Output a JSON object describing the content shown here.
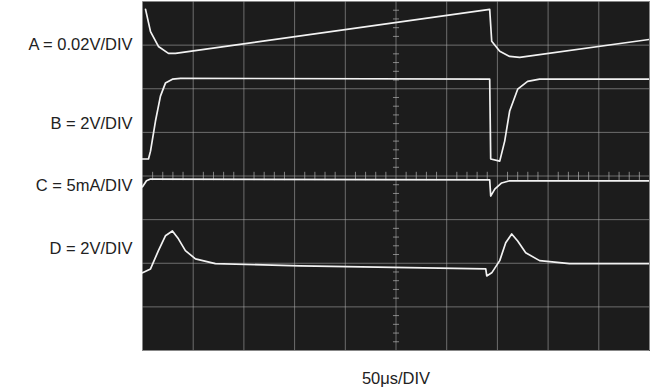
{
  "chart_data": {
    "type": "line",
    "x_label": "50μs/DIV",
    "xlim": [
      0,
      500
    ],
    "xticks": [
      0,
      50,
      100,
      150,
      200,
      250,
      300,
      350,
      400,
      450,
      500
    ],
    "ylim": [
      0,
      8
    ],
    "yticks": [
      0,
      1,
      2,
      3,
      4,
      5,
      6,
      7,
      8
    ],
    "grid": true,
    "tick_labels": false,
    "series": [
      {
        "name": "A = 0.02V/DIV",
        "color": "#f2f2f2",
        "x": [
          3.0,
          7.9,
          15.7,
          25.6,
          32.5,
          342.4,
          344.4,
          352.3,
          362.1,
          372.0,
          499.9
        ],
        "values": [
          7.82,
          7.31,
          6.97,
          6.81,
          6.81,
          7.82,
          7.09,
          6.86,
          6.74,
          6.72,
          7.13
        ]
      },
      {
        "name": "B = 2V/DIV",
        "color": "#f2f2f2",
        "x": [
          0,
          5.9,
          7.9,
          12.8,
          17.7,
          22.6,
          29.5,
          37.4,
          342.4,
          343.4,
          352.3,
          357.2,
          362.1,
          370.0,
          379.8,
          391.6,
          499.9
        ],
        "values": [
          4.39,
          4.39,
          4.57,
          5.26,
          5.83,
          6.13,
          6.22,
          6.24,
          6.22,
          4.39,
          4.34,
          4.8,
          5.49,
          5.99,
          6.17,
          6.22,
          6.22
        ]
      },
      {
        "name": "C = 5mA/DIV",
        "color": "#f2f2f2",
        "x": [
          0,
          3.9,
          7.9,
          342.4,
          343.4,
          347.4,
          354.2,
          362.1,
          499.9
        ],
        "values": [
          3.75,
          3.89,
          3.93,
          3.91,
          3.54,
          3.7,
          3.84,
          3.89,
          3.89
        ]
      },
      {
        "name": "D = 2V/DIV",
        "color": "#f2f2f2",
        "x": [
          0,
          7.9,
          15.7,
          22.6,
          29.5,
          35.4,
          42.3,
          52.2,
          71.8,
          155.5,
          338.5,
          339.5,
          344.4,
          352.3,
          358.2,
          364.1,
          370.0,
          377.9,
          391.6,
          421.2,
          499.9
        ],
        "values": [
          1.78,
          1.87,
          2.29,
          2.63,
          2.74,
          2.56,
          2.29,
          2.1,
          1.99,
          1.94,
          1.87,
          1.71,
          1.78,
          2.06,
          2.47,
          2.67,
          2.51,
          2.24,
          2.06,
          1.99,
          1.99
        ]
      }
    ]
  }
}
